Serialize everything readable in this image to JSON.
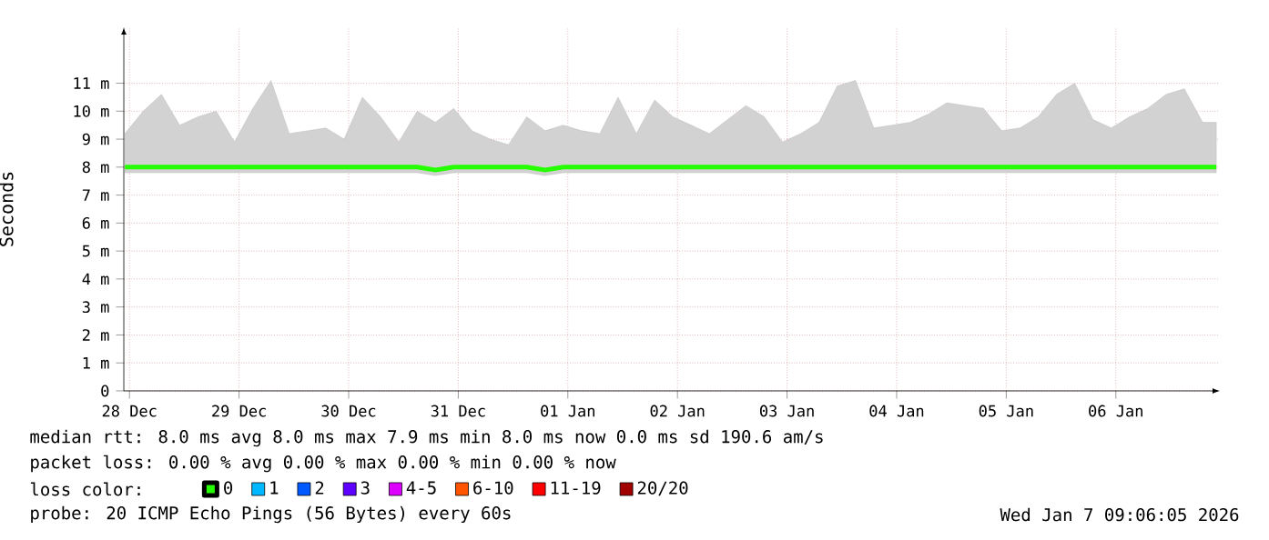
{
  "chart_data": {
    "type": "line",
    "ylabel": "Seconds",
    "xlim": [
      "2025-12-27T22:46",
      "2026-01-06T22:46"
    ],
    "xticks": [
      {
        "value": "2025-12-28",
        "label": "28 Dec"
      },
      {
        "value": "2025-12-29",
        "label": "29 Dec"
      },
      {
        "value": "2025-12-30",
        "label": "30 Dec"
      },
      {
        "value": "2025-12-31",
        "label": "31 Dec"
      },
      {
        "value": "2026-01-01",
        "label": "01 Jan"
      },
      {
        "value": "2026-01-02",
        "label": "02 Jan"
      },
      {
        "value": "2026-01-03",
        "label": "03 Jan"
      },
      {
        "value": "2026-01-04",
        "label": "04 Jan"
      },
      {
        "value": "2026-01-05",
        "label": "05 Jan"
      },
      {
        "value": "2026-01-06",
        "label": "06 Jan"
      }
    ],
    "ylim": [
      0,
      13
    ],
    "yticks": [
      0,
      {
        "value": 1,
        "label": "1 m"
      },
      {
        "value": 2,
        "label": "2 m"
      },
      {
        "value": 3,
        "label": "3 m"
      },
      {
        "value": 4,
        "label": "4 m"
      },
      {
        "value": 5,
        "label": "5 m"
      },
      {
        "value": 6,
        "label": "6 m"
      },
      {
        "value": 7,
        "label": "7 m"
      },
      {
        "value": 8,
        "label": "8 m"
      },
      {
        "value": 9,
        "label": "9 m"
      },
      {
        "value": 10,
        "label": "10 m"
      },
      {
        "value": 11,
        "label": "11 m"
      }
    ],
    "grid": true,
    "legend": "bottom",
    "legend_title": "loss color:",
    "x": [
      "2025-12-27T23:00",
      "2025-12-28T03:00",
      "2025-12-28T07:00",
      "2025-12-28T11:00",
      "2025-12-28T15:00",
      "2025-12-28T19:00",
      "2025-12-28T23:00",
      "2025-12-29T03:00",
      "2025-12-29T07:00",
      "2025-12-29T11:00",
      "2025-12-29T15:00",
      "2025-12-29T19:00",
      "2025-12-29T23:00",
      "2025-12-30T03:00",
      "2025-12-30T07:00",
      "2025-12-30T11:00",
      "2025-12-30T15:00",
      "2025-12-30T19:00",
      "2025-12-30T23:00",
      "2025-12-31T03:00",
      "2025-12-31T07:00",
      "2025-12-31T11:00",
      "2025-12-31T15:00",
      "2025-12-31T19:00",
      "2025-12-31T23:00",
      "2026-01-01T03:00",
      "2026-01-01T07:00",
      "2026-01-01T11:00",
      "2026-01-01T15:00",
      "2026-01-01T19:00",
      "2026-01-01T23:00",
      "2026-01-02T03:00",
      "2026-01-02T07:00",
      "2026-01-02T11:00",
      "2026-01-02T15:00",
      "2026-01-02T19:00",
      "2026-01-02T23:00",
      "2026-01-03T03:00",
      "2026-01-03T07:00",
      "2026-01-03T11:00",
      "2026-01-03T15:00",
      "2026-01-03T19:00",
      "2026-01-03T23:00",
      "2026-01-04T03:00",
      "2026-01-04T07:00",
      "2026-01-04T11:00",
      "2026-01-04T15:00",
      "2026-01-04T19:00",
      "2026-01-04T23:00",
      "2026-01-05T03:00",
      "2026-01-05T07:00",
      "2026-01-05T11:00",
      "2026-01-05T15:00",
      "2026-01-05T19:00",
      "2026-01-05T23:00",
      "2026-01-06T03:00",
      "2026-01-06T07:00",
      "2026-01-06T11:00",
      "2026-01-06T15:00",
      "2026-01-06T19:00",
      "2026-01-06T22:00"
    ],
    "series": [
      {
        "name": "0",
        "color": "#26ff00",
        "values": [
          8.0,
          8.0,
          8.0,
          8.0,
          8.0,
          8.0,
          8.0,
          8.0,
          8.0,
          8.0,
          8.0,
          8.0,
          8.0,
          8.0,
          8.0,
          8.0,
          8.0,
          7.9,
          8.0,
          8.0,
          8.0,
          8.0,
          8.0,
          7.9,
          8.0,
          8.0,
          8.0,
          8.0,
          8.0,
          8.0,
          8.0,
          8.0,
          8.0,
          8.0,
          8.0,
          8.0,
          8.0,
          8.0,
          8.0,
          8.0,
          8.0,
          8.0,
          8.0,
          8.0,
          8.0,
          8.0,
          8.0,
          8.0,
          8.0,
          8.0,
          8.0,
          8.0,
          8.0,
          8.0,
          8.0,
          8.0,
          8.0,
          8.0,
          8.0,
          8.0,
          8.0
        ],
        "lower": [
          7.8,
          7.8,
          7.8,
          7.8,
          7.8,
          7.8,
          7.8,
          7.8,
          7.8,
          7.8,
          7.8,
          7.8,
          7.8,
          7.8,
          7.8,
          7.8,
          7.8,
          7.7,
          7.8,
          7.8,
          7.8,
          7.8,
          7.8,
          7.7,
          7.8,
          7.8,
          7.8,
          7.8,
          7.8,
          7.8,
          7.8,
          7.8,
          7.8,
          7.8,
          7.8,
          7.8,
          7.8,
          7.8,
          7.8,
          7.8,
          7.8,
          7.8,
          7.8,
          7.8,
          7.8,
          7.8,
          7.8,
          7.8,
          7.8,
          7.8,
          7.8,
          7.8,
          7.8,
          7.8,
          7.8,
          7.8,
          7.8,
          7.8,
          7.8,
          7.8,
          7.8
        ],
        "upper": [
          9.2,
          10.0,
          10.6,
          9.5,
          9.8,
          10.0,
          8.9,
          10.1,
          11.1,
          9.2,
          9.3,
          9.4,
          9.0,
          10.5,
          9.8,
          8.9,
          10.0,
          9.6,
          10.1,
          9.3,
          9.0,
          8.8,
          9.8,
          9.3,
          9.5,
          9.3,
          9.2,
          10.5,
          9.2,
          10.4,
          9.8,
          9.5,
          9.2,
          9.7,
          10.2,
          9.8,
          8.9,
          9.2,
          9.6,
          10.9,
          11.1,
          9.4,
          9.5,
          9.6,
          9.9,
          10.3,
          10.2,
          10.1,
          9.3,
          9.4,
          9.8,
          10.6,
          11.0,
          9.7,
          9.4,
          9.8,
          10.1,
          10.6,
          10.8,
          9.6,
          9.6
        ]
      },
      {
        "name": "1",
        "color": "#00b8ff",
        "values": [
          null,
          null,
          null,
          null,
          null,
          null,
          null,
          null,
          null,
          null,
          null,
          null,
          null,
          null,
          null,
          null,
          null,
          null,
          null,
          null,
          null,
          null,
          null,
          null,
          null,
          null,
          null,
          null,
          null,
          null,
          null,
          null,
          null,
          null,
          null,
          null,
          null,
          null,
          null,
          null,
          null,
          null,
          null,
          null,
          null,
          null,
          null,
          null,
          null,
          null,
          null,
          null,
          null,
          null,
          null,
          null,
          null,
          null,
          null,
          null,
          null
        ]
      },
      {
        "name": "2",
        "color": "#0059ff",
        "values": [
          null,
          null,
          null,
          null,
          null,
          null,
          null,
          null,
          null,
          null,
          null,
          null,
          null,
          null,
          null,
          null,
          null,
          null,
          null,
          null,
          null,
          null,
          null,
          null,
          null,
          null,
          null,
          null,
          null,
          null,
          null,
          null,
          null,
          null,
          null,
          null,
          null,
          null,
          null,
          null,
          null,
          null,
          null,
          null,
          null,
          null,
          null,
          null,
          null,
          null,
          null,
          null,
          null,
          null,
          null,
          null,
          null,
          null,
          null,
          null,
          null
        ]
      },
      {
        "name": "3",
        "color": "#5e00ff",
        "values": [
          null,
          null,
          null,
          null,
          null,
          null,
          null,
          null,
          null,
          null,
          null,
          null,
          null,
          null,
          null,
          null,
          null,
          null,
          null,
          null,
          null,
          null,
          null,
          null,
          null,
          null,
          null,
          null,
          null,
          null,
          null,
          null,
          null,
          null,
          null,
          null,
          null,
          null,
          null,
          null,
          null,
          null,
          null,
          null,
          null,
          null,
          null,
          null,
          null,
          null,
          null,
          null,
          null,
          null,
          null,
          null,
          null,
          null,
          null,
          null,
          null
        ]
      },
      {
        "name": "4-5",
        "color": "#dd00ff",
        "values": [
          null,
          null,
          null,
          null,
          null,
          null,
          null,
          null,
          null,
          null,
          null,
          null,
          null,
          null,
          null,
          null,
          null,
          null,
          null,
          null,
          null,
          null,
          null,
          null,
          null,
          null,
          null,
          null,
          null,
          null,
          null,
          null,
          null,
          null,
          null,
          null,
          null,
          null,
          null,
          null,
          null,
          null,
          null,
          null,
          null,
          null,
          null,
          null,
          null,
          null,
          null,
          null,
          null,
          null,
          null,
          null,
          null,
          null,
          null,
          null,
          null
        ]
      },
      {
        "name": "6-10",
        "color": "#ff5500",
        "values": [
          null,
          null,
          null,
          null,
          null,
          null,
          null,
          null,
          null,
          null,
          null,
          null,
          null,
          null,
          null,
          null,
          null,
          null,
          null,
          null,
          null,
          null,
          null,
          null,
          null,
          null,
          null,
          null,
          null,
          null,
          null,
          null,
          null,
          null,
          null,
          null,
          null,
          null,
          null,
          null,
          null,
          null,
          null,
          null,
          null,
          null,
          null,
          null,
          null,
          null,
          null,
          null,
          null,
          null,
          null,
          null,
          null,
          null,
          null,
          null,
          null
        ]
      },
      {
        "name": "11-19",
        "color": "#ff0000",
        "values": [
          null,
          null,
          null,
          null,
          null,
          null,
          null,
          null,
          null,
          null,
          null,
          null,
          null,
          null,
          null,
          null,
          null,
          null,
          null,
          null,
          null,
          null,
          null,
          null,
          null,
          null,
          null,
          null,
          null,
          null,
          null,
          null,
          null,
          null,
          null,
          null,
          null,
          null,
          null,
          null,
          null,
          null,
          null,
          null,
          null,
          null,
          null,
          null,
          null,
          null,
          null,
          null,
          null,
          null,
          null,
          null,
          null,
          null,
          null,
          null,
          null
        ]
      },
      {
        "name": "20/20",
        "color": "#a10000",
        "values": [
          null,
          null,
          null,
          null,
          null,
          null,
          null,
          null,
          null,
          null,
          null,
          null,
          null,
          null,
          null,
          null,
          null,
          null,
          null,
          null,
          null,
          null,
          null,
          null,
          null,
          null,
          null,
          null,
          null,
          null,
          null,
          null,
          null,
          null,
          null,
          null,
          null,
          null,
          null,
          null,
          null,
          null,
          null,
          null,
          null,
          null,
          null,
          null,
          null,
          null,
          null,
          null,
          null,
          null,
          null,
          null,
          null,
          null,
          null,
          null,
          null
        ]
      }
    ],
    "annotations": [
      "median rtt: 8.0 ms avg 8.0 ms max 7.9 ms min 8.0 ms now 0.0 ms sd 190.6 am/s",
      "packet loss: 0.00 % avg 0.00 % max 0.00 % min 0.00 % now",
      "probe: 20 ICMP Echo Pings (56 Bytes) every 60s",
      "Wed Jan 7 09:06:05 2026"
    ]
  }
}
